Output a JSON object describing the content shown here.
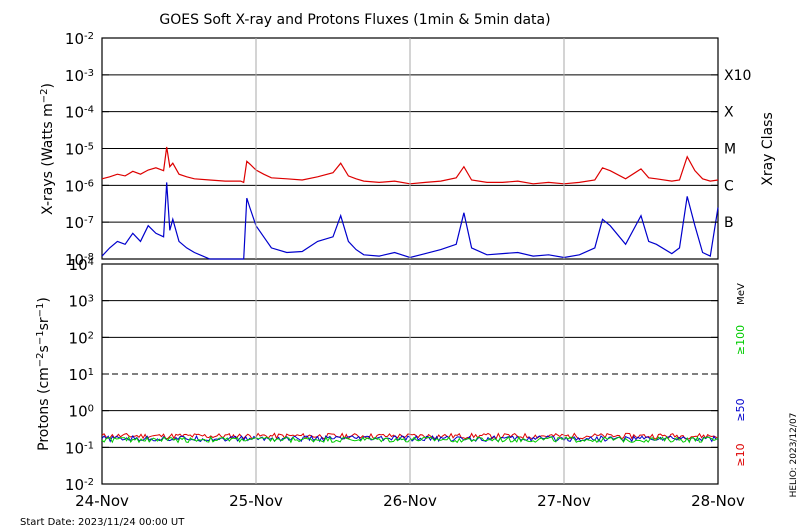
{
  "title": "GOES Soft X-ray and Protons Fluxes   (1min & 5min data)",
  "start_date": "Start Date: 2023/11/24 00:00 UT",
  "credit": "HELIO: 2023/12/07",
  "colors": {
    "background": "#ffffff",
    "axis": "#000000",
    "grid_day": "#aaaaaa",
    "xray_long": "#dd0000",
    "xray_short": "#0000cc",
    "proton_10": "#dd0000",
    "proton_50": "#0000cc",
    "proton_100": "#00cc00"
  },
  "chart_data": [
    {
      "type": "line",
      "title": "",
      "ylabel": "X-rays (Watts m⁻²)",
      "yscale": "log",
      "ylim": [
        1e-08,
        0.01
      ],
      "y_ticks": [
        {
          "value": 0.01,
          "base": "10",
          "exp": "-2"
        },
        {
          "value": 0.001,
          "base": "10",
          "exp": "-3"
        },
        {
          "value": 0.0001,
          "base": "10",
          "exp": "-4"
        },
        {
          "value": 1e-05,
          "base": "10",
          "exp": "-5"
        },
        {
          "value": 1e-06,
          "base": "10",
          "exp": "-6"
        },
        {
          "value": 1e-07,
          "base": "10",
          "exp": "-7"
        },
        {
          "value": 1e-08,
          "base": "10",
          "exp": "-8"
        }
      ],
      "grid_lines": [
        0.001,
        0.0001,
        1e-05,
        1e-06,
        1e-07
      ],
      "right_label": "Xray Class",
      "class_labels": [
        {
          "label": "X10",
          "value": 0.001
        },
        {
          "label": "X",
          "value": 0.0001
        },
        {
          "label": "M",
          "value": 1e-05
        },
        {
          "label": "C",
          "value": 1e-06
        },
        {
          "label": "B",
          "value": 1e-07
        }
      ],
      "x_unit": "days since 2023/11/24 00:00 UT",
      "series": [
        {
          "color_key": "xray_long",
          "x": [
            0,
            0.05,
            0.1,
            0.15,
            0.2,
            0.25,
            0.3,
            0.35,
            0.4,
            0.42,
            0.44,
            0.46,
            0.5,
            0.55,
            0.6,
            0.7,
            0.8,
            0.9,
            0.92,
            0.94,
            0.96,
            1.0,
            1.05,
            1.1,
            1.2,
            1.3,
            1.4,
            1.5,
            1.55,
            1.6,
            1.65,
            1.7,
            1.8,
            1.9,
            2.0,
            2.1,
            2.2,
            2.3,
            2.35,
            2.4,
            2.5,
            2.6,
            2.7,
            2.8,
            2.9,
            3.0,
            3.1,
            3.2,
            3.25,
            3.3,
            3.4,
            3.5,
            3.55,
            3.6,
            3.7,
            3.75,
            3.8,
            3.85,
            3.9,
            3.95,
            4.0
          ],
          "y": [
            1.5e-06,
            1.7e-06,
            2e-06,
            1.8e-06,
            2.4e-06,
            2e-06,
            2.6e-06,
            3e-06,
            2.5e-06,
            1.1e-05,
            3.2e-06,
            4e-06,
            2e-06,
            1.7e-06,
            1.5e-06,
            1.4e-06,
            1.3e-06,
            1.3e-06,
            1.2e-06,
            4.5e-06,
            3.8e-06,
            2.6e-06,
            2e-06,
            1.6e-06,
            1.5e-06,
            1.4e-06,
            1.7e-06,
            2.2e-06,
            4e-06,
            1.8e-06,
            1.5e-06,
            1.3e-06,
            1.2e-06,
            1.3e-06,
            1.1e-06,
            1.2e-06,
            1.3e-06,
            1.6e-06,
            3.2e-06,
            1.4e-06,
            1.2e-06,
            1.2e-06,
            1.3e-06,
            1.1e-06,
            1.2e-06,
            1.1e-06,
            1.2e-06,
            1.4e-06,
            3e-06,
            2.5e-06,
            1.5e-06,
            2.8e-06,
            1.6e-06,
            1.5e-06,
            1.3e-06,
            1.4e-06,
            6e-06,
            2.5e-06,
            1.5e-06,
            1.3e-06,
            1.4e-06
          ]
        },
        {
          "color_key": "xray_short",
          "x": [
            0,
            0.05,
            0.1,
            0.15,
            0.2,
            0.25,
            0.3,
            0.35,
            0.4,
            0.42,
            0.44,
            0.46,
            0.5,
            0.55,
            0.6,
            0.7,
            0.8,
            0.9,
            0.92,
            0.94,
            0.96,
            1.0,
            1.05,
            1.1,
            1.2,
            1.3,
            1.4,
            1.5,
            1.55,
            1.6,
            1.65,
            1.7,
            1.8,
            1.9,
            2.0,
            2.1,
            2.2,
            2.3,
            2.35,
            2.4,
            2.5,
            2.6,
            2.7,
            2.8,
            2.9,
            3.0,
            3.1,
            3.2,
            3.25,
            3.3,
            3.4,
            3.5,
            3.55,
            3.6,
            3.7,
            3.75,
            3.8,
            3.85,
            3.9,
            3.95,
            4.0
          ],
          "y": [
            1.2e-08,
            2e-08,
            3e-08,
            2.5e-08,
            5e-08,
            3e-08,
            8e-08,
            5e-08,
            4e-08,
            1.2e-06,
            6e-08,
            1.2e-07,
            3e-08,
            2e-08,
            1.5e-08,
            1e-08,
            1e-08,
            1e-08,
            1e-08,
            4.5e-07,
            2.5e-07,
            8e-08,
            4e-08,
            2e-08,
            1.5e-08,
            1.6e-08,
            3e-08,
            4e-08,
            1.5e-07,
            3e-08,
            1.8e-08,
            1.3e-08,
            1.2e-08,
            1.5e-08,
            1.1e-08,
            1.4e-08,
            1.8e-08,
            2.5e-08,
            1.8e-07,
            2e-08,
            1.3e-08,
            1.4e-08,
            1.5e-08,
            1.2e-08,
            1.3e-08,
            1.1e-08,
            1.3e-08,
            2e-08,
            1.2e-07,
            8e-08,
            2.5e-08,
            1.5e-07,
            3e-08,
            2.5e-08,
            1.4e-08,
            2e-08,
            5e-07,
            8e-08,
            1.5e-08,
            1.2e-08,
            2.5e-07
          ]
        }
      ]
    },
    {
      "type": "line",
      "title": "",
      "ylabel": "Protons (cm⁻²s⁻¹sr⁻¹)",
      "yscale": "log",
      "ylim": [
        0.01,
        10000
      ],
      "y_ticks": [
        {
          "value": 10000,
          "base": "10",
          "exp": "4"
        },
        {
          "value": 1000,
          "base": "10",
          "exp": "3"
        },
        {
          "value": 100,
          "base": "10",
          "exp": "2"
        },
        {
          "value": 10,
          "base": "10",
          "exp": "1"
        },
        {
          "value": 1,
          "base": "10",
          "exp": "0"
        },
        {
          "value": 0.1,
          "base": "10",
          "exp": "-1"
        },
        {
          "value": 0.01,
          "base": "10",
          "exp": "-2"
        }
      ],
      "grid_lines": [
        1000,
        100,
        1,
        0.1
      ],
      "dashed_line": 10,
      "unit_label": "MeV",
      "legend": [
        {
          "label": "≥100",
          "color_key": "proton_100"
        },
        {
          "label": "≥50",
          "color_key": "proton_50"
        },
        {
          "label": "≥10",
          "color_key": "proton_10"
        }
      ],
      "series": [
        {
          "color_key": "proton_10",
          "level": 0.2
        },
        {
          "color_key": "proton_50",
          "level": 0.17
        },
        {
          "color_key": "proton_100",
          "level": 0.16
        }
      ],
      "x_ticks": [
        "24-Nov",
        "25-Nov",
        "26-Nov",
        "27-Nov",
        "28-Nov"
      ]
    }
  ]
}
